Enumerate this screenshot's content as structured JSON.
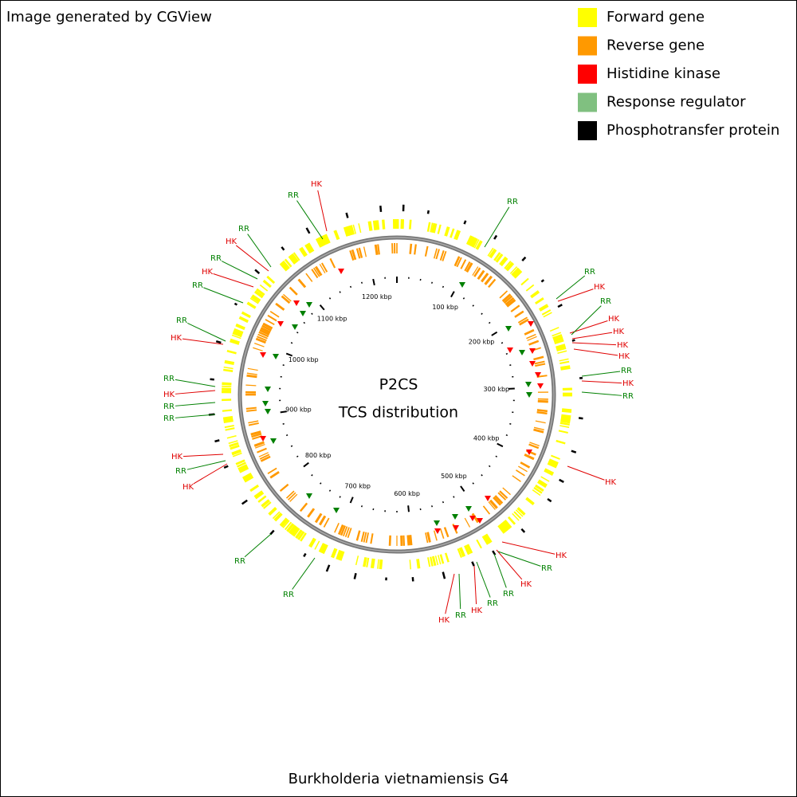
{
  "header": {
    "credit": "Image generated by CGView"
  },
  "legend": [
    {
      "label": "Forward gene",
      "color": "#ffff00"
    },
    {
      "label": "Reverse gene",
      "color": "#ff9900"
    },
    {
      "label": "Histidine kinase",
      "color": "#ff0000"
    },
    {
      "label": "Response regulator",
      "color": "#80c080"
    },
    {
      "label": "Phosphotransfer protein",
      "color": "#000000"
    }
  ],
  "center": {
    "title": "P2CS",
    "subtitle": "TCS distribution"
  },
  "kbp_labels": [
    "100 kbp",
    "200 kbp",
    "300 kbp",
    "400 kbp",
    "500 kbp",
    "600 kbp",
    "700 kbp",
    "800 kbp",
    "900 kbp",
    "1000 kbp",
    "1100 kbp",
    "1200 kbp"
  ],
  "features": [
    {
      "label": "RR",
      "color": "#008000"
    },
    {
      "label": "HK",
      "color": "#e00000"
    },
    {
      "label": "RR",
      "color": "#008000"
    },
    {
      "label": "HK",
      "color": "#e00000"
    },
    {
      "label": "RR",
      "color": "#008000"
    },
    {
      "label": "HK",
      "color": "#e00000"
    },
    {
      "label": "RR",
      "color": "#008000"
    },
    {
      "label": "RR",
      "color": "#008000"
    },
    {
      "label": "HK",
      "color": "#e00000"
    },
    {
      "label": "RR",
      "color": "#008000"
    },
    {
      "label": "HK",
      "color": "#e00000"
    },
    {
      "label": "RR",
      "color": "#008000"
    },
    {
      "label": "RR",
      "color": "#008000"
    },
    {
      "label": "HK",
      "color": "#e00000"
    },
    {
      "label": "RR",
      "color": "#008000"
    },
    {
      "label": "HK",
      "color": "#e00000"
    },
    {
      "label": "RR",
      "color": "#008000"
    },
    {
      "label": "RR",
      "color": "#008000"
    },
    {
      "label": "HK",
      "color": "#e00000"
    },
    {
      "label": "RR",
      "color": "#008000"
    },
    {
      "label": "HK",
      "color": "#e00000"
    },
    {
      "label": "RR",
      "color": "#008000"
    },
    {
      "label": "RR",
      "color": "#008000"
    },
    {
      "label": "HK",
      "color": "#e00000"
    },
    {
      "label": "RR",
      "color": "#008000"
    },
    {
      "label": "HK",
      "color": "#e00000"
    },
    {
      "label": "HK",
      "color": "#e00000"
    },
    {
      "label": "RR",
      "color": "#008000"
    },
    {
      "label": "HK",
      "color": "#e00000"
    },
    {
      "label": "RR",
      "color": "#008000"
    },
    {
      "label": "HK",
      "color": "#e00000"
    },
    {
      "label": "HK",
      "color": "#e00000"
    },
    {
      "label": "HK",
      "color": "#e00000"
    },
    {
      "label": "HK",
      "color": "#e00000"
    },
    {
      "label": "RR",
      "color": "#008000"
    },
    {
      "label": "HK",
      "color": "#e00000"
    },
    {
      "label": "RR",
      "color": "#008000"
    },
    {
      "label": "RR",
      "color": "#008000"
    }
  ],
  "footer": "Burkholderia vietnamiensis G4"
}
